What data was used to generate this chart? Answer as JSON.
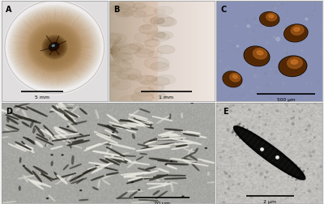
{
  "panels": [
    "A",
    "B",
    "C",
    "D",
    "E"
  ],
  "A": {
    "bg_outer": "#e8e8e8",
    "plate_color": "#f0eeec",
    "colony_outer": "#c8a878",
    "colony_mid": "#a07848",
    "colony_center": "#3a1a08",
    "fringe_color": "#c8a868",
    "scale_bar": "5 mm",
    "label": "A"
  },
  "B": {
    "bg": "#d8d0c0",
    "colony_left": "#b8a080",
    "scale_bar": "1 mm",
    "label": "B"
  },
  "C": {
    "bg": "#8890b8",
    "sporo_outer": "#180800",
    "sporo_body": "#6a3808",
    "sporo_highlight": "#c07828",
    "scale_bar": "500 μm",
    "label": "C",
    "sporangioles": [
      [
        0.5,
        0.82,
        0.18,
        0.14,
        -5
      ],
      [
        0.75,
        0.68,
        0.22,
        0.17,
        10
      ],
      [
        0.38,
        0.45,
        0.24,
        0.19,
        -15
      ],
      [
        0.72,
        0.35,
        0.26,
        0.2,
        5
      ],
      [
        0.15,
        0.22,
        0.18,
        0.15,
        -20
      ]
    ]
  },
  "D": {
    "bg": "#a8a8a0",
    "scale_bar": "20 μm",
    "label": "D"
  },
  "E": {
    "bg": "#c8c4bc",
    "rod_color": "#080808",
    "scale_bar": "2 μm",
    "label": "E"
  },
  "border_color": "#999999",
  "fig_bg": "#f0f0f0"
}
